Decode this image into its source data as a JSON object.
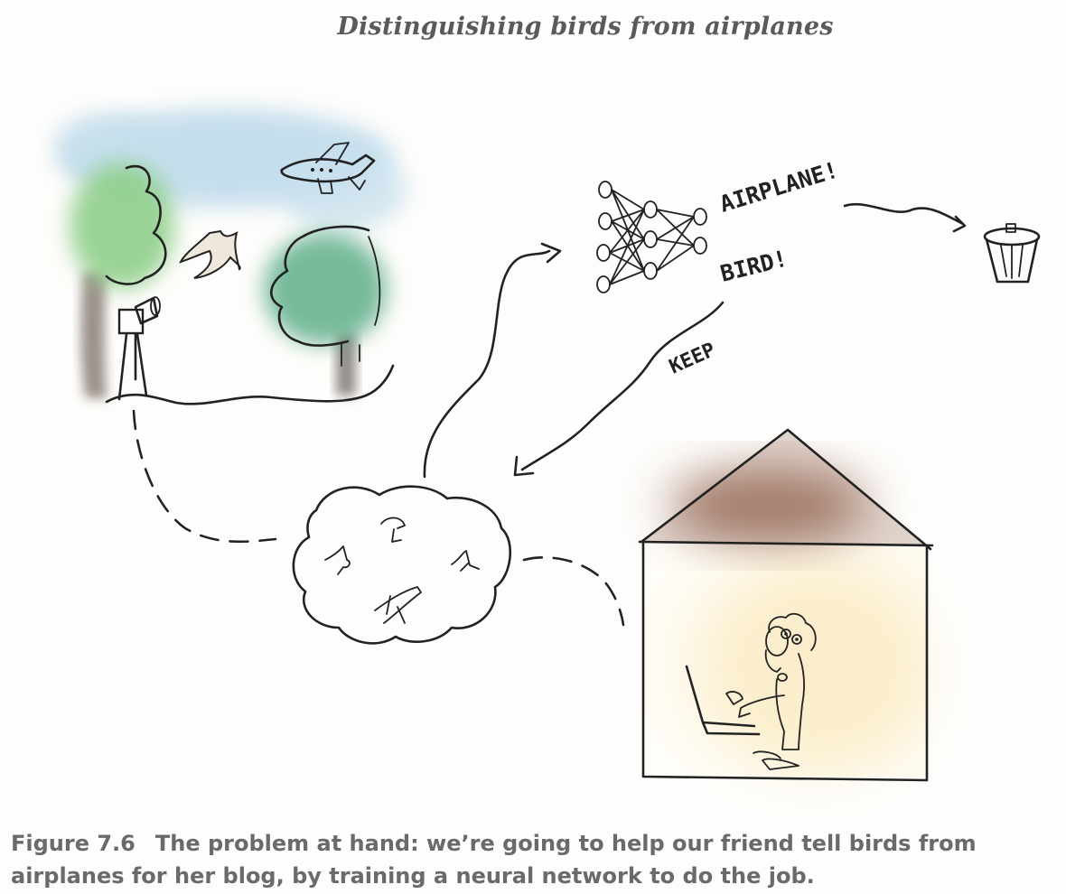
{
  "figure": {
    "title": "Distinguishing birds from airplanes",
    "caption_number": "Figure 7.6",
    "caption_text": "The problem at hand: we’re going to help our friend tell birds from airplanes for her blog, by training a neural network to do the job."
  },
  "labels": {
    "airplane": "AIRPLANE!",
    "bird": "BIRD!",
    "keep": "KEEP"
  },
  "colors": {
    "sky": "#bcd9ea",
    "tree_left": "#8fcf8a",
    "tree_right": "#5fae8a",
    "roof": "#8a5a44",
    "house_glow": "#fbf1d8"
  }
}
